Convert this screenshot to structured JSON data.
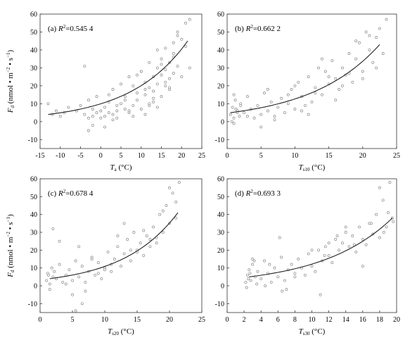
{
  "figure": {
    "panels": [
      {
        "id": "a",
        "letter": "(a)",
        "r2_prefix": "R",
        "r2_sup": "2",
        "r2_value": "=0.545 4",
        "ylabel_main": "F",
        "ylabel_sub": "d",
        "ylabel_rest": " (nmol • m",
        "ylabel_exp": "−2",
        "ylabel_rest2": " • s",
        "ylabel_exp2": "−1",
        "ylabel_close": ")",
        "xlabel_main": "T",
        "xlabel_sub": "a",
        "xlabel_unit": " (°C)",
        "xticks": [
          "-15",
          "-10",
          "-5",
          "0",
          "5",
          "10",
          "15",
          "20",
          "25"
        ],
        "yticks": [
          "60",
          "50",
          "40",
          "30",
          "20",
          "10",
          "0",
          "-10"
        ]
      },
      {
        "id": "b",
        "letter": "(b)",
        "r2_prefix": "R",
        "r2_sup": "2",
        "r2_value": "=0.662 2",
        "xlabel_main": "T",
        "xlabel_sub": "s10",
        "xlabel_unit": " (°C)",
        "xticks": [
          "0",
          "5",
          "10",
          "15",
          "20",
          "25"
        ],
        "yticks": [
          "60",
          "50",
          "40",
          "30",
          "20",
          "10",
          "0",
          "-10"
        ]
      },
      {
        "id": "c",
        "letter": "(c)",
        "r2_prefix": "R",
        "r2_sup": "2",
        "r2_value": "=0.678 4",
        "ylabel_main": "F",
        "ylabel_sub": "d",
        "ylabel_rest": " (nmol • m",
        "ylabel_exp": "−2",
        "ylabel_rest2": " • s",
        "ylabel_exp2": "−1",
        "ylabel_close": ")",
        "xlabel_main": "T",
        "xlabel_sub": "s20",
        "xlabel_unit": " (°C)",
        "xticks": [
          "0",
          "5",
          "10",
          "15",
          "20",
          "25"
        ],
        "yticks": [
          "60",
          "50",
          "40",
          "30",
          "20",
          "10",
          "0",
          "-10"
        ]
      },
      {
        "id": "d",
        "letter": "(d)",
        "r2_prefix": "R",
        "r2_sup": "2",
        "r2_value": "=0.693 3",
        "xlabel_main": "T",
        "xlabel_sub": "s30",
        "xlabel_unit": " (°C)",
        "xticks": [
          "0",
          "2",
          "4",
          "6",
          "8",
          "10",
          "12",
          "14",
          "16",
          "18",
          "20"
        ],
        "yticks": [
          "60",
          "50",
          "40",
          "30",
          "20",
          "10",
          "0",
          "-10"
        ]
      }
    ]
  },
  "chart_data": [
    {
      "type": "scatter",
      "panel": "a",
      "xlim": [
        -15,
        25
      ],
      "ylim": [
        -15,
        60
      ],
      "fit": {
        "type": "exponential",
        "x_start": -13,
        "x_end": 21.5,
        "y_start": 4,
        "y_end": 45,
        "r2": 0.5454
      },
      "x": [
        -13,
        -12,
        -11,
        -10,
        -9,
        -8,
        -6,
        -5,
        -4,
        -4,
        -3,
        -3,
        -2,
        -2,
        -1,
        -1,
        0,
        0,
        1,
        1,
        2,
        2,
        3,
        3,
        4,
        4,
        5,
        5,
        6,
        6,
        7,
        7,
        8,
        8,
        9,
        9,
        10,
        10,
        11,
        11,
        11,
        12,
        12,
        12,
        13,
        13,
        13,
        14,
        14,
        14,
        15,
        15,
        15,
        16,
        16,
        16,
        17,
        17,
        17,
        18,
        18,
        18,
        19,
        19,
        20,
        20,
        21,
        21,
        22,
        22,
        -3,
        1,
        3,
        6,
        8,
        10,
        12,
        14,
        16,
        18,
        -2,
        2,
        4,
        7,
        9,
        11,
        13,
        15,
        17,
        19
      ],
      "y": [
        10,
        4,
        6,
        3,
        5,
        8,
        6,
        9,
        4,
        31,
        2,
        12,
        7,
        3,
        5,
        14,
        2,
        6,
        8,
        3,
        11,
        5,
        4,
        18,
        6,
        2,
        10,
        21,
        7,
        14,
        5,
        25,
        9,
        3,
        16,
        12,
        7,
        28,
        15,
        4,
        22,
        19,
        9,
        33,
        11,
        25,
        17,
        30,
        8,
        21,
        14,
        26,
        35,
        20,
        29,
        41,
        24,
        33,
        18,
        27,
        44,
        38,
        31,
        50,
        25,
        46,
        42,
        55,
        30,
        57,
        -5,
        -3,
        1,
        12,
        20,
        28,
        10,
        40,
        22,
        36,
        -2,
        15,
        9,
        6,
        26,
        18,
        13,
        32,
        19,
        48
      ]
    },
    {
      "type": "scatter",
      "panel": "b",
      "xlim": [
        0,
        25
      ],
      "ylim": [
        -15,
        60
      ],
      "fit": {
        "type": "exponential",
        "x_start": 0.5,
        "x_end": 22.5,
        "y_start": 5,
        "y_end": 43,
        "r2": 0.6622
      },
      "x": [
        0.5,
        0.8,
        1,
        1.2,
        1.5,
        1.8,
        2,
        2.5,
        3,
        3.5,
        4,
        4.5,
        5,
        5.5,
        6,
        6.5,
        7,
        7.5,
        8,
        8.5,
        9,
        9.5,
        10,
        10.5,
        11,
        11.5,
        12,
        12.5,
        13,
        13.5,
        14,
        14.5,
        15,
        15.5,
        16,
        16.5,
        17,
        17.5,
        18,
        18.5,
        19,
        19.5,
        20,
        20.5,
        21,
        21.5,
        22,
        22.5,
        23,
        23.5,
        1,
        1,
        1.5,
        2,
        5,
        7,
        10,
        12,
        14,
        16,
        18,
        20,
        22,
        0.7,
        1.3,
        3,
        6,
        9,
        11,
        13,
        15,
        17,
        19,
        21
      ],
      "y": [
        4,
        8,
        2,
        12,
        6,
        3,
        10,
        5,
        14,
        7,
        2,
        9,
        4,
        16,
        6,
        11,
        3,
        8,
        13,
        5,
        10,
        18,
        7,
        22,
        14,
        9,
        25,
        11,
        19,
        30,
        15,
        28,
        21,
        34,
        24,
        18,
        30,
        26,
        38,
        22,
        35,
        44,
        28,
        50,
        40,
        33,
        47,
        52,
        38,
        57,
        -1,
        15,
        5,
        9,
        -3,
        1,
        20,
        4,
        35,
        12,
        27,
        24,
        30,
        0,
        7,
        3,
        18,
        15,
        6,
        16,
        25,
        20,
        45,
        48
      ]
    },
    {
      "type": "scatter",
      "panel": "c",
      "xlim": [
        0,
        25
      ],
      "ylim": [
        -15,
        60
      ],
      "fit": {
        "type": "exponential",
        "x_start": 1.5,
        "x_end": 21.3,
        "y_start": 4,
        "y_end": 41,
        "r2": 0.6784
      },
      "x": [
        1,
        1.2,
        1.5,
        1.8,
        2,
        2.2,
        2.5,
        3,
        3.5,
        4,
        4.5,
        5,
        5.5,
        6,
        6.5,
        7,
        7.5,
        8,
        8.5,
        9,
        9.5,
        10,
        10.5,
        11,
        11.5,
        12,
        12.5,
        13,
        13.5,
        14,
        14.5,
        15,
        15.5,
        16,
        16.5,
        17,
        17.5,
        18,
        18.5,
        19,
        19.5,
        20,
        20.5,
        21,
        21.5,
        1.5,
        2,
        3,
        5,
        7,
        9,
        11,
        13,
        15,
        17,
        19,
        21,
        1.3,
        2.5,
        4,
        6,
        8,
        10,
        12,
        14,
        16,
        18,
        20,
        5.5,
        6.5
      ],
      "y": [
        3,
        7,
        1,
        10,
        5,
        8,
        4,
        12,
        2,
        6,
        9,
        3,
        14,
        5,
        11,
        2,
        8,
        16,
        6,
        13,
        4,
        10,
        19,
        8,
        15,
        22,
        11,
        18,
        26,
        14,
        30,
        20,
        24,
        17,
        28,
        22,
        33,
        27,
        40,
        30,
        45,
        35,
        52,
        38,
        58,
        -2,
        32,
        25,
        -5,
        -3,
        7,
        12,
        35,
        19,
        26,
        42,
        47,
        6,
        4,
        1,
        22,
        15,
        9,
        28,
        20,
        31,
        24,
        55,
        -14,
        -10
      ]
    },
    {
      "type": "scatter",
      "panel": "d",
      "xlim": [
        0,
        20
      ],
      "ylim": [
        -15,
        60
      ],
      "fit": {
        "type": "exponential",
        "x_start": 2.6,
        "x_end": 19.5,
        "y_start": 5,
        "y_end": 38,
        "r2": 0.6933
      },
      "x": [
        2.2,
        2.4,
        2.6,
        2.8,
        3,
        3.3,
        3.6,
        4,
        4.4,
        4.8,
        5.2,
        5.6,
        6,
        6.4,
        6.8,
        7.2,
        7.6,
        8,
        8.4,
        8.8,
        9.2,
        9.6,
        10,
        10.4,
        10.8,
        11.2,
        11.6,
        12,
        12.4,
        12.8,
        13.2,
        13.6,
        14,
        14.4,
        14.8,
        15.2,
        15.6,
        16,
        16.4,
        16.8,
        17.2,
        17.6,
        18,
        18.4,
        18.8,
        19.2,
        19.6,
        2.3,
        2.5,
        3,
        4.5,
        6.5,
        7,
        11,
        12,
        14,
        16,
        18,
        19,
        2.7,
        3.5,
        5,
        8,
        10,
        11.5,
        13,
        15,
        17,
        18.5,
        19.5,
        3.2,
        6.2
      ],
      "y": [
        2,
        6,
        9,
        3,
        12,
        5,
        8,
        4,
        14,
        7,
        2,
        10,
        5,
        16,
        3,
        9,
        12,
        7,
        15,
        10,
        6,
        18,
        11,
        8,
        20,
        14,
        22,
        17,
        13,
        26,
        20,
        24,
        30,
        22,
        28,
        19,
        33,
        26,
        23,
        35,
        29,
        40,
        27,
        48,
        33,
        58,
        36,
        -1,
        4,
        15,
        0,
        -3,
        -2,
        -5,
        24,
        33,
        11,
        55,
        41,
        7,
        1,
        12,
        5,
        20,
        17,
        28,
        23,
        35,
        30,
        38,
        14,
        27
      ]
    }
  ]
}
